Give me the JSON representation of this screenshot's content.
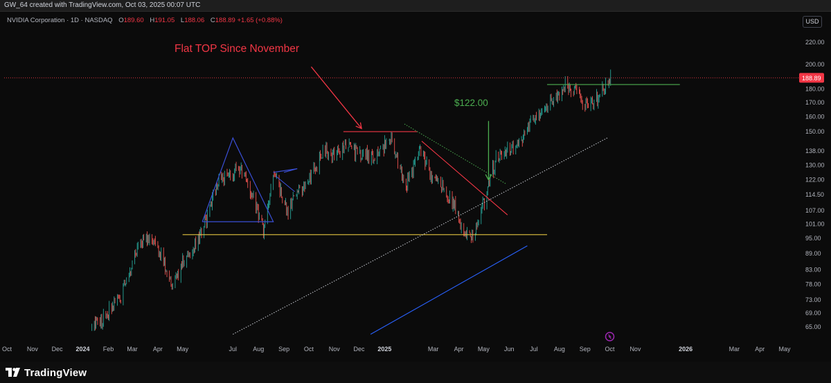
{
  "header": {
    "credit": "GW_64 created with TradingView.com, Oct 03, 2025 00:07 UTC"
  },
  "legend": {
    "symbol": "NVIDIA Corporation · 1D · NASDAQ",
    "open_label": "O",
    "open": "189.60",
    "high_label": "H",
    "high": "191.05",
    "low_label": "L",
    "low": "188.06",
    "close_label": "C",
    "close": "188.89",
    "change": "+1.65 (+0.88%)"
  },
  "currency": "USD",
  "footer": {
    "brand": "TradingView"
  },
  "colors": {
    "up": "#26a69a",
    "down": "#ef5350",
    "background": "#0b0b0b",
    "price_line": "#f23645",
    "support": "#e3c340",
    "blue_trend": "#2962ff",
    "triangle": "#3a4fd6",
    "green_line": "#4caf50"
  },
  "chart_data": {
    "type": "candlestick",
    "y_scale": "log",
    "ylim": [
      62,
      232
    ],
    "y_ticks": [
      "65.00",
      "69.00",
      "73.00",
      "78.00",
      "83.00",
      "89.00",
      "95.00",
      "101.00",
      "107.00",
      "114.50",
      "122.00",
      "130.00",
      "138.00",
      "150.00",
      "160.00",
      "170.00",
      "180.00",
      "200.00",
      "220.00"
    ],
    "last_price_label": "188.89",
    "last_price": 188.89,
    "x_ticks": [
      {
        "label": "Oct",
        "date": "2023-10-01"
      },
      {
        "label": "Nov",
        "date": "2023-11-01"
      },
      {
        "label": "Dec",
        "date": "2023-12-01"
      },
      {
        "label": "2024",
        "date": "2024-01-01",
        "year": true
      },
      {
        "label": "Feb",
        "date": "2024-02-01"
      },
      {
        "label": "Mar",
        "date": "2024-03-01"
      },
      {
        "label": "Apr",
        "date": "2024-04-01"
      },
      {
        "label": "May",
        "date": "2024-05-01"
      },
      {
        "label": "Jul",
        "date": "2024-07-01"
      },
      {
        "label": "Aug",
        "date": "2024-08-01"
      },
      {
        "label": "Sep",
        "date": "2024-09-01"
      },
      {
        "label": "Oct",
        "date": "2024-10-01"
      },
      {
        "label": "Nov",
        "date": "2024-11-01"
      },
      {
        "label": "Dec",
        "date": "2024-12-01"
      },
      {
        "label": "2025",
        "date": "2025-01-01",
        "year": true
      },
      {
        "label": "Mar",
        "date": "2025-03-01"
      },
      {
        "label": "Apr",
        "date": "2025-04-01"
      },
      {
        "label": "May",
        "date": "2025-05-01"
      },
      {
        "label": "Jun",
        "date": "2025-06-01"
      },
      {
        "label": "Jul",
        "date": "2025-07-01"
      },
      {
        "label": "Aug",
        "date": "2025-08-01"
      },
      {
        "label": "Sep",
        "date": "2025-09-01"
      },
      {
        "label": "Oct",
        "date": "2025-10-01"
      },
      {
        "label": "Nov",
        "date": "2025-11-01"
      },
      {
        "label": "2026",
        "date": "2026-01-01",
        "year": true
      },
      {
        "label": "Mar",
        "date": "2026-03-01"
      },
      {
        "label": "Apr",
        "date": "2026-04-01"
      },
      {
        "label": "May",
        "date": "2026-05-01"
      }
    ],
    "price_path": [
      {
        "date": "2024-01-12",
        "price": 64
      },
      {
        "date": "2024-01-26",
        "price": 68
      },
      {
        "date": "2024-02-09",
        "price": 72
      },
      {
        "date": "2024-02-23",
        "price": 79
      },
      {
        "date": "2024-03-08",
        "price": 92
      },
      {
        "date": "2024-03-22",
        "price": 95
      },
      {
        "date": "2024-04-05",
        "price": 88
      },
      {
        "date": "2024-04-19",
        "price": 78
      },
      {
        "date": "2024-05-03",
        "price": 86
      },
      {
        "date": "2024-05-17",
        "price": 93
      },
      {
        "date": "2024-05-31",
        "price": 104
      },
      {
        "date": "2024-06-14",
        "price": 122
      },
      {
        "date": "2024-06-28",
        "price": 126
      },
      {
        "date": "2024-07-12",
        "price": 128
      },
      {
        "date": "2024-07-26",
        "price": 112
      },
      {
        "date": "2024-08-07",
        "price": 100
      },
      {
        "date": "2024-08-21",
        "price": 126
      },
      {
        "date": "2024-09-06",
        "price": 106
      },
      {
        "date": "2024-09-20",
        "price": 117
      },
      {
        "date": "2024-10-04",
        "price": 124
      },
      {
        "date": "2024-10-18",
        "price": 137
      },
      {
        "date": "2024-11-01",
        "price": 136
      },
      {
        "date": "2024-11-15",
        "price": 142
      },
      {
        "date": "2024-11-29",
        "price": 138
      },
      {
        "date": "2024-12-13",
        "price": 134
      },
      {
        "date": "2024-12-27",
        "price": 137
      },
      {
        "date": "2025-01-07",
        "price": 148
      },
      {
        "date": "2025-01-27",
        "price": 120
      },
      {
        "date": "2025-02-14",
        "price": 138
      },
      {
        "date": "2025-02-28",
        "price": 122
      },
      {
        "date": "2025-03-14",
        "price": 118
      },
      {
        "date": "2025-03-28",
        "price": 109
      },
      {
        "date": "2025-04-07",
        "price": 95
      },
      {
        "date": "2025-04-21",
        "price": 98
      },
      {
        "date": "2025-05-02",
        "price": 112
      },
      {
        "date": "2025-05-16",
        "price": 134
      },
      {
        "date": "2025-05-30",
        "price": 138
      },
      {
        "date": "2025-06-13",
        "price": 143
      },
      {
        "date": "2025-06-27",
        "price": 155
      },
      {
        "date": "2025-07-11",
        "price": 166
      },
      {
        "date": "2025-07-25",
        "price": 173
      },
      {
        "date": "2025-08-08",
        "price": 182
      },
      {
        "date": "2025-08-22",
        "price": 176
      },
      {
        "date": "2025-09-05",
        "price": 167
      },
      {
        "date": "2025-09-19",
        "price": 177
      },
      {
        "date": "2025-10-02",
        "price": 189
      }
    ],
    "annotations": [
      {
        "type": "text",
        "text": "Flat TOP Since November",
        "color": "#f23645"
      },
      {
        "type": "text",
        "text": "$122.00",
        "color": "#4caf50"
      },
      {
        "type": "arrow",
        "color": "#f23645",
        "from": {
          "date": "2024-10-04",
          "price": 198
        },
        "to": {
          "date": "2024-12-04",
          "price": 152
        }
      },
      {
        "type": "arrow",
        "color": "#4caf50",
        "from": {
          "date": "2025-05-07",
          "price": 157
        },
        "to": {
          "date": "2025-05-07",
          "price": 122
        }
      },
      {
        "type": "hline",
        "color": "#f23645",
        "price": 150,
        "from": "2024-11-12",
        "to": "2025-02-10"
      },
      {
        "type": "hline",
        "color": "#4caf50",
        "price": 183.5,
        "from": "2025-07-17",
        "to": "2025-12-25"
      },
      {
        "type": "hline",
        "color": "#e3c340",
        "price": 96.5,
        "from": "2024-05-01",
        "to": "2025-07-17"
      },
      {
        "type": "line",
        "color": "#d1d4dc",
        "dotted": true,
        "from": {
          "date": "2024-07-01",
          "price": 63
        },
        "to": {
          "date": "2025-09-28",
          "price": 146
        }
      },
      {
        "type": "line",
        "color": "#2962ff",
        "from": {
          "date": "2024-12-15",
          "price": 63
        },
        "to": {
          "date": "2025-06-23",
          "price": 92
        }
      },
      {
        "type": "line",
        "color": "#f23645",
        "from": {
          "date": "2025-02-15",
          "price": 144
        },
        "to": {
          "date": "2025-05-30",
          "price": 105
        }
      },
      {
        "type": "line",
        "color": "#4caf50",
        "dotted": true,
        "from": {
          "date": "2025-01-25",
          "price": 155
        },
        "to": {
          "date": "2025-05-28",
          "price": 120
        }
      },
      {
        "type": "polyline",
        "color": "#3a4fd6",
        "points": [
          {
            "date": "2024-05-25",
            "price": 102
          },
          {
            "date": "2024-07-01",
            "price": 146
          },
          {
            "date": "2024-08-19",
            "price": 102
          },
          {
            "date": "2024-05-25",
            "price": 102
          }
        ]
      },
      {
        "type": "polyline",
        "color": "#3a4fd6",
        "points": [
          {
            "date": "2024-08-19",
            "price": 126
          },
          {
            "date": "2024-09-17",
            "price": 128
          },
          {
            "date": "2024-09-01",
            "price": 126
          }
        ]
      },
      {
        "type": "line",
        "color": "#3a4fd6",
        "from": {
          "date": "2024-08-22",
          "price": 124
        },
        "to": {
          "date": "2024-09-14",
          "price": 116
        }
      }
    ]
  }
}
